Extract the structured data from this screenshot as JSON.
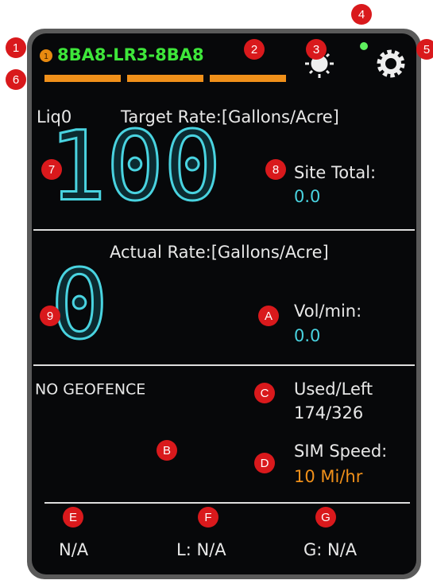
{
  "header": {
    "status_badge": "1",
    "device_id": "8BA8-LR3-8BA8"
  },
  "target": {
    "product": "Liq0",
    "label": "Target Rate:[Gallons/Acre]",
    "value": "100",
    "site_total_label": "Site Total:",
    "site_total_value": "0.0"
  },
  "actual": {
    "label": "Actual Rate:[Gallons/Acre]",
    "value": "0",
    "vol_label": "Vol/min:",
    "vol_value": "0.0"
  },
  "status": {
    "geofence": "NO GEOFENCE",
    "used_left_label": "Used/Left",
    "used_left_value": "174/326",
    "sim_speed_label": "SIM Speed:",
    "sim_speed_value": "10 Mi/hr"
  },
  "footer": {
    "gps": "N/A",
    "l": "L: N/A",
    "g": "G: N/A"
  },
  "markers": [
    "1",
    "2",
    "3",
    "4",
    "5",
    "6",
    "7",
    "8",
    "9",
    "A",
    "B",
    "C",
    "D",
    "E",
    "F",
    "G"
  ]
}
